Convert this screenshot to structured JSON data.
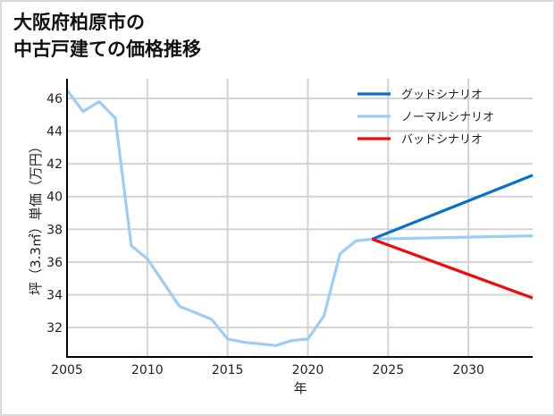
{
  "title_line1": "大阪府柏原市の",
  "title_line2": "中古戸建ての価格推移",
  "chart_data": {
    "type": "line",
    "title": "大阪府柏原市の中古戸建ての価格推移",
    "xlabel": "年",
    "ylabel": "坪（3.3㎡）単価（万円）",
    "xlim": [
      2005,
      2034
    ],
    "ylim": [
      30.2,
      47.2
    ],
    "xticks": [
      2005,
      2010,
      2015,
      2020,
      2025,
      2030
    ],
    "yticks": [
      32,
      34,
      36,
      38,
      40,
      42,
      44,
      46
    ],
    "grid": true,
    "legend_position": "upper right",
    "series": [
      {
        "name": "グッドシナリオ",
        "color": "#0a6fc7",
        "x": [
          2024,
          2034
        ],
        "values": [
          37.4,
          41.3
        ]
      },
      {
        "name": "ノーマルシナリオ",
        "color": "#9dcdf7",
        "x": [
          2005,
          2006,
          2007,
          2008,
          2009,
          2010,
          2012,
          2014,
          2015,
          2016,
          2018,
          2019,
          2020,
          2021,
          2022,
          2023,
          2024,
          2034
        ],
        "values": [
          46.5,
          45.2,
          45.8,
          44.8,
          37.0,
          36.2,
          33.3,
          32.5,
          31.3,
          31.1,
          30.9,
          31.2,
          31.3,
          32.7,
          36.5,
          37.3,
          37.4,
          37.6
        ]
      },
      {
        "name": "バッドシナリオ",
        "color": "#f00a0a",
        "x": [
          2024,
          2034
        ],
        "values": [
          37.4,
          33.8
        ]
      }
    ]
  },
  "legend": [
    {
      "label": "グッドシナリオ",
      "color": "#0a6fc7"
    },
    {
      "label": "ノーマルシナリオ",
      "color": "#9dcdf7"
    },
    {
      "label": "バッドシナリオ",
      "color": "#f00a0a"
    }
  ]
}
